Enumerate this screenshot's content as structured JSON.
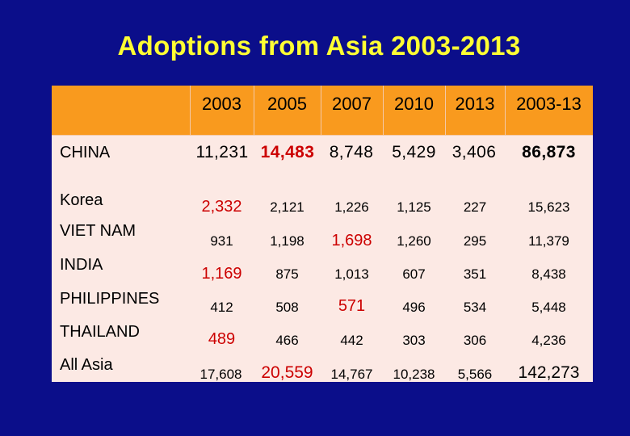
{
  "title": "Adoptions from Asia 2003-2013",
  "table": {
    "headers": [
      "2003",
      "2005",
      "2007",
      "2010",
      "2013",
      "2003-13"
    ],
    "rows": [
      {
        "country": "CHINA",
        "values": [
          "11,231",
          "14,483",
          "8,748",
          "5,429",
          "3,406",
          "86,873"
        ]
      },
      {
        "country": "Korea",
        "values": [
          "2,332",
          "2,121",
          "1,226",
          "1,125",
          "227",
          "15,623"
        ]
      },
      {
        "country": "VIET NAM",
        "values": [
          "931",
          "1,198",
          "1,698",
          "1,260",
          "295",
          "11,379"
        ]
      },
      {
        "country": "INDIA",
        "values": [
          "1,169",
          "875",
          "1,013",
          "607",
          "351",
          "8,438"
        ]
      },
      {
        "country": "PHILIPPINES",
        "values": [
          "412",
          "508",
          "571",
          "496",
          "534",
          "5,448"
        ]
      },
      {
        "country": "THAILAND",
        "values": [
          "489",
          "466",
          "442",
          "303",
          "306",
          "4,236"
        ]
      },
      {
        "country": "All Asia",
        "values": [
          "17,608",
          "20,559",
          "14,767",
          "10,238",
          "5,566",
          "142,273"
        ]
      }
    ]
  },
  "colors": {
    "background": "#0b0e8a",
    "title": "#ffff33",
    "header_band": "#f99a1e",
    "table_body": "#fce9e4",
    "highlight": "#cc0000"
  }
}
